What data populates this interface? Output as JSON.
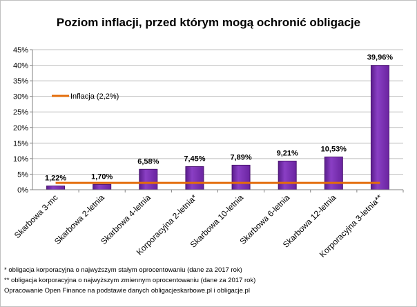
{
  "chart_data": {
    "type": "bar",
    "title": "Poziom inflacji, przed którym mogą ochronić obligacje",
    "categories": [
      "Skarbowa 3-mc",
      "Skarbowa 2-letnia",
      "Skarbowa 4-letnia",
      "Korporacyjna 2-letnia*",
      "Skarbowa 10-letnia",
      "Skarbowa 6-letnia",
      "Skarbowa 12-letnia",
      "Korporacyjna 3-letnia**"
    ],
    "values": [
      1.22,
      1.7,
      6.58,
      7.45,
      7.89,
      9.21,
      10.53,
      39.96
    ],
    "data_labels": [
      "1,22%",
      "1,70%",
      "6,58%",
      "7,45%",
      "7,89%",
      "9,21%",
      "10,53%",
      "39,96%"
    ],
    "yticks": [
      "0%",
      "5%",
      "10%",
      "15%",
      "20%",
      "25%",
      "30%",
      "35%",
      "40%",
      "45%"
    ],
    "ylim": [
      0,
      45
    ],
    "grid": true,
    "bar_color": "#7030a0",
    "reference_line": {
      "name": "Inflacja (2,2%)",
      "value": 2.2,
      "color": "#e36c0a"
    },
    "legend_position": "top-left"
  },
  "footnotes": [
    "* obligacja korporacyjna o najwyższym stałym oprocentowaniu (dane za 2017 rok)",
    "** obligacja korporacyjna o najwyższym zmiennym oprocentowaniu (dane za 2017 rok)",
    "Opracowanie Open Finance na podstawie danych obligacjeskarbowe.pl i obligacje.pl"
  ]
}
